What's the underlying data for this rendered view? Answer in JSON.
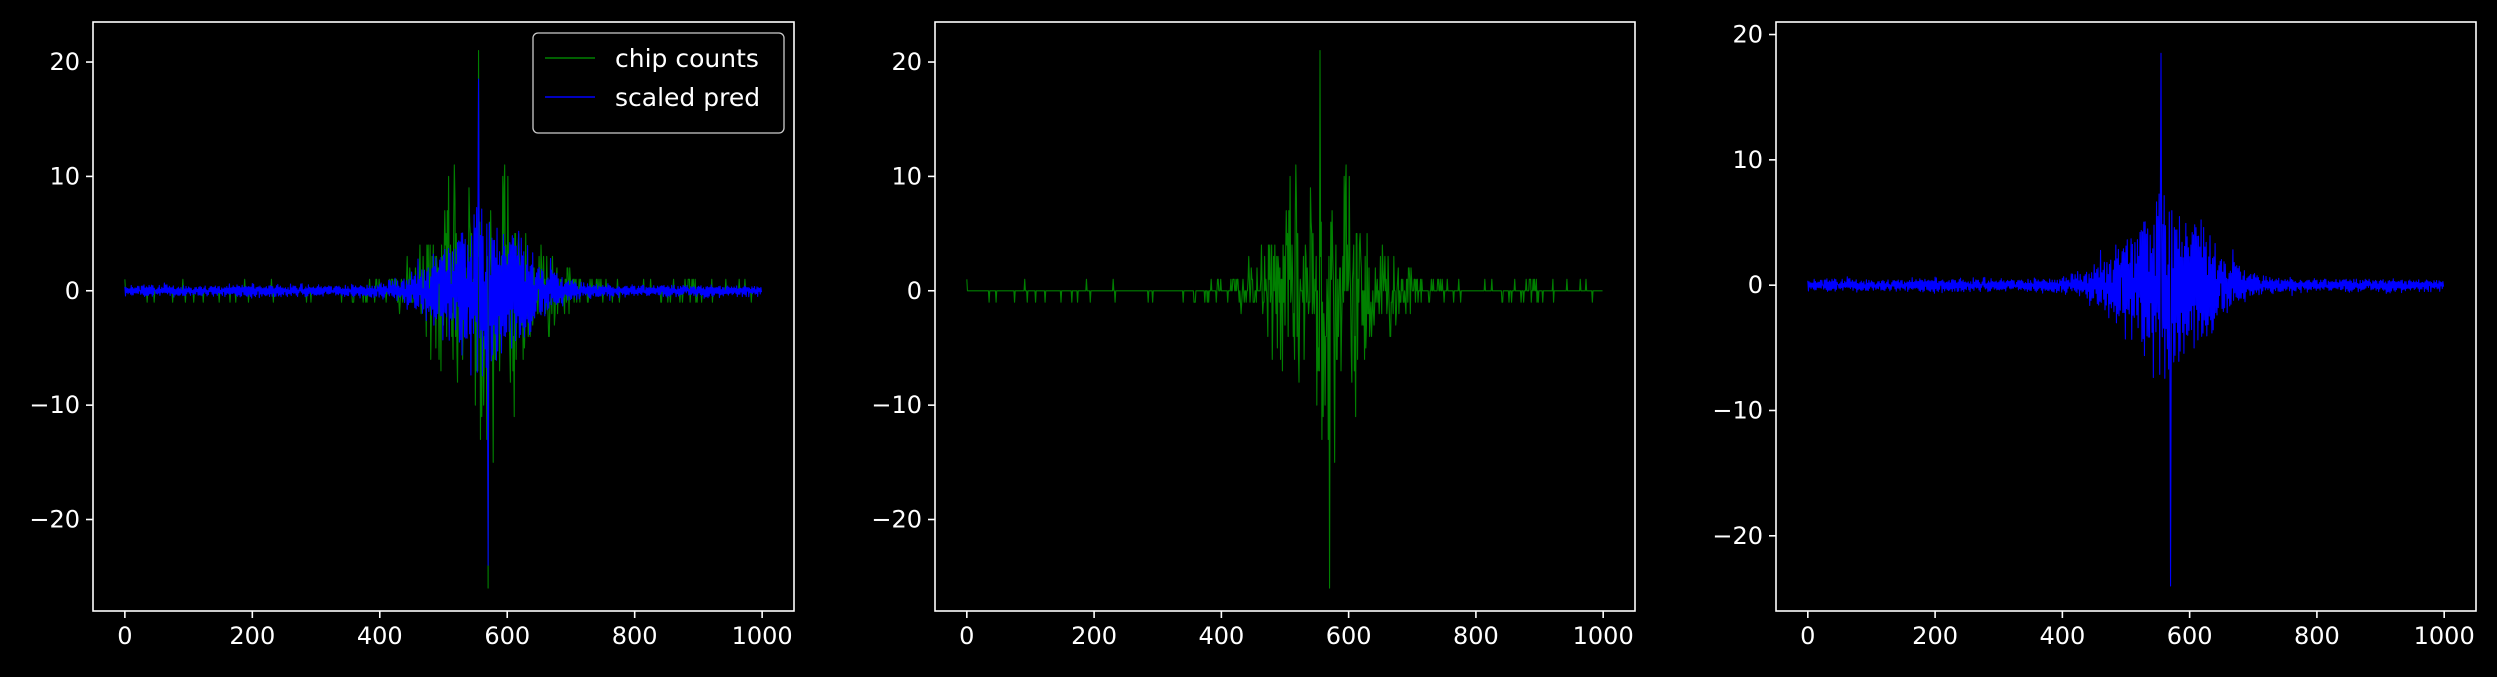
{
  "colors": {
    "background": "#000000",
    "axes": "#ffffff",
    "chip_counts": "#008000",
    "scaled_pred": "#0000ff"
  },
  "chart_data": [
    {
      "type": "line",
      "xlim": [
        -50,
        1050
      ],
      "ylim": [
        -28,
        23.5
      ],
      "xticks": [
        0,
        200,
        400,
        600,
        800,
        1000
      ],
      "yticks": [
        -20,
        -10,
        0,
        10,
        20
      ],
      "grid": false,
      "legend_position": "top-right",
      "series": [
        {
          "name": "chip counts",
          "color": "#008000",
          "n": 1000,
          "envelope_peak": 6.5,
          "min": -26,
          "max": 21,
          "center": 565
        },
        {
          "name": "scaled pred",
          "color": "#0000ff",
          "n": 1000,
          "envelope_peak": 4.5,
          "min": -24,
          "max": 18.5,
          "center": 565
        }
      ]
    },
    {
      "type": "line",
      "xlim": [
        -50,
        1050
      ],
      "ylim": [
        -28,
        23.5
      ],
      "xticks": [
        0,
        200,
        400,
        600,
        800,
        1000
      ],
      "yticks": [
        -20,
        -10,
        0,
        10,
        20
      ],
      "grid": false,
      "series": [
        {
          "color": "#008000",
          "n": 1000,
          "envelope_peak": 6.5,
          "min": -26,
          "max": 21,
          "center": 565
        }
      ]
    },
    {
      "type": "line",
      "xlim": [
        -50,
        1050
      ],
      "ylim": [
        -26,
        21
      ],
      "xticks": [
        0,
        200,
        400,
        600,
        800,
        1000
      ],
      "yticks": [
        -20,
        -10,
        0,
        10,
        20
      ],
      "grid": false,
      "series": [
        {
          "color": "#0000ff",
          "n": 1000,
          "envelope_peak": 4.5,
          "min": -24,
          "max": 18.5,
          "center": 565
        }
      ]
    }
  ]
}
